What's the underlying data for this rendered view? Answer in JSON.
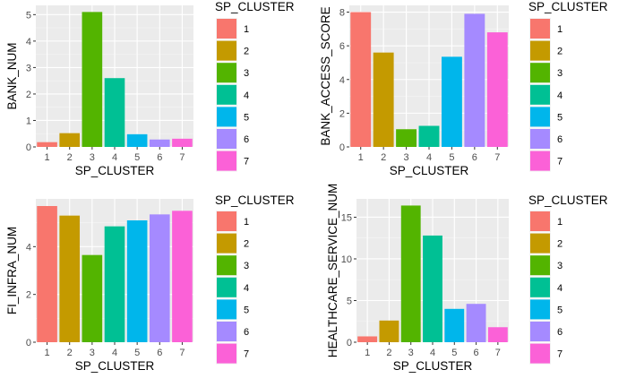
{
  "colors": {
    "panel_bg": "#EBEBEB",
    "grid_major": "#FFFFFF",
    "grid_minor": "#F5F5F5",
    "series": [
      "#F8766D",
      "#C49A00",
      "#53B400",
      "#00C094",
      "#00B6EB",
      "#A58AFF",
      "#FB61D7"
    ]
  },
  "chart_data": [
    {
      "type": "bar",
      "categories": [
        "1",
        "2",
        "3",
        "4",
        "5",
        "6",
        "7"
      ],
      "values": [
        0.18,
        0.52,
        5.1,
        2.6,
        0.48,
        0.28,
        0.31
      ],
      "xlabel": "SP_CLUSTER",
      "ylabel": "BANK_NUM",
      "ylim": [
        0,
        5.35
      ],
      "yticks": [
        0,
        1,
        2,
        3,
        4,
        5
      ],
      "legend": {
        "title": "SP_CLUSTER",
        "entries": [
          "1",
          "2",
          "3",
          "4",
          "5",
          "6",
          "7"
        ],
        "placement": "right"
      },
      "grid": true
    },
    {
      "type": "bar",
      "categories": [
        "1",
        "2",
        "3",
        "4",
        "5",
        "6",
        "7"
      ],
      "values": [
        8.0,
        5.6,
        1.05,
        1.25,
        5.35,
        7.9,
        6.8
      ],
      "xlabel": "SP_CLUSTER",
      "ylabel": "BANK_ACCESS_SCORE",
      "ylim": [
        0,
        8.4
      ],
      "yticks": [
        0,
        2,
        4,
        6,
        8
      ],
      "legend": {
        "title": "SP_CLUSTER",
        "entries": [
          "1",
          "2",
          "3",
          "4",
          "5",
          "6",
          "7"
        ],
        "placement": "right"
      },
      "grid": true
    },
    {
      "type": "bar",
      "categories": [
        "1",
        "2",
        "3",
        "4",
        "5",
        "6",
        "7"
      ],
      "values": [
        5.7,
        5.3,
        3.65,
        4.85,
        5.1,
        5.35,
        5.5
      ],
      "xlabel": "SP_CLUSTER",
      "ylabel": "FI_INFRA_NUM",
      "ylim": [
        0,
        6.0
      ],
      "yticks": [
        0,
        2,
        4
      ],
      "legend": {
        "title": "SP_CLUSTER",
        "entries": [
          "1",
          "2",
          "3",
          "4",
          "5",
          "6",
          "7"
        ],
        "placement": "right"
      },
      "grid": true
    },
    {
      "type": "bar",
      "categories": [
        "1",
        "2",
        "3",
        "4",
        "5",
        "6",
        "7"
      ],
      "values": [
        0.7,
        2.6,
        16.4,
        12.8,
        4.0,
        4.6,
        1.8
      ],
      "xlabel": "SP_CLUSTER",
      "ylabel": "HEALTHCARE_SERVICE_NUM",
      "ylim": [
        0,
        17.2
      ],
      "yticks": [
        0,
        5,
        10,
        15
      ],
      "legend": {
        "title": "SP_CLUSTER",
        "entries": [
          "1",
          "2",
          "3",
          "4",
          "5",
          "6",
          "7"
        ],
        "placement": "right"
      },
      "grid": true
    }
  ]
}
